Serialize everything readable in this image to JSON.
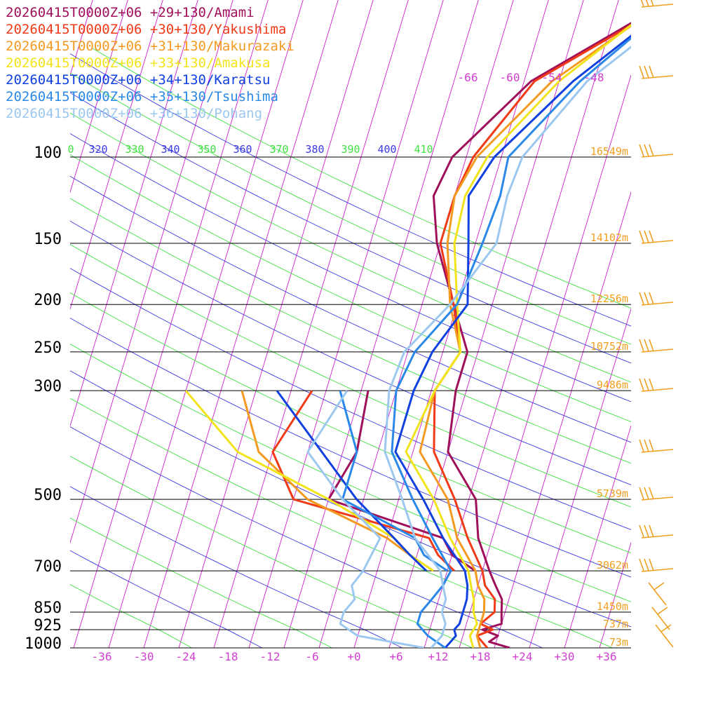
{
  "chart_data": {
    "type": "line",
    "title": "",
    "xlabel": "",
    "ylabel": "",
    "x_ticks": [
      "-36",
      "-30",
      "-24",
      "-18",
      "-12",
      "-6",
      "+0",
      "+6",
      "+12",
      "+18",
      "+24",
      "+30",
      "+36"
    ],
    "y_ticks": [
      {
        "p": 100,
        "label": "100",
        "height": "16549m"
      },
      {
        "p": 150,
        "label": "150",
        "height": "14102m"
      },
      {
        "p": 200,
        "label": "200",
        "height": "12256m"
      },
      {
        "p": 250,
        "label": "250",
        "height": "10752m"
      },
      {
        "p": 300,
        "label": "300",
        "height": "9486m"
      },
      {
        "p": 500,
        "label": "500",
        "height": "5739m"
      },
      {
        "p": 700,
        "label": "700",
        "height": "3062m"
      },
      {
        "p": 850,
        "label": "850",
        "height": "1450m"
      },
      {
        "p": 925,
        "label": "925",
        "height": "737m"
      },
      {
        "p": 1000,
        "label": "1000",
        "height": "73m"
      }
    ],
    "isotherm_labels": [
      "-66",
      "-60",
      "-54",
      "-48"
    ],
    "theta_labels": [
      "0",
      "320",
      "330",
      "340",
      "350",
      "360",
      "370",
      "380",
      "390",
      "400",
      "410"
    ],
    "series": [
      {
        "name": "20260415T0000Z+06 +29+130/Amami",
        "color": "#a0105a",
        "temp": [
          [
            1000,
            22.2
          ],
          [
            975,
            19
          ],
          [
            950,
            20
          ],
          [
            925,
            17.5
          ],
          [
            900,
            20
          ],
          [
            850,
            19.5
          ],
          [
            800,
            19
          ],
          [
            750,
            17.5
          ],
          [
            700,
            16
          ],
          [
            600,
            13
          ],
          [
            500,
            11
          ],
          [
            400,
            5
          ],
          [
            300,
            3.5
          ],
          [
            250,
            3.5
          ],
          [
            200,
            -0.5
          ],
          [
            150,
            -5.5
          ],
          [
            120,
            -8
          ],
          [
            100,
            -7
          ],
          [
            70,
            1
          ],
          [
            50,
            15.5
          ]
        ],
        "dew": [
          [
            300,
            -9
          ],
          [
            400,
            -8
          ],
          [
            500,
            -10
          ],
          [
            600,
            8
          ],
          [
            650,
            10
          ],
          [
            700,
            14
          ]
        ]
      },
      {
        "name": "20260415T0000Z+06 +30+130/Yakushima",
        "color": "#f03a18",
        "temp": [
          [
            1000,
            19
          ],
          [
            950,
            17
          ],
          [
            925,
            19
          ],
          [
            900,
            17
          ],
          [
            850,
            18.5
          ],
          [
            800,
            18
          ],
          [
            750,
            16
          ],
          [
            700,
            15
          ],
          [
            600,
            11.5
          ],
          [
            500,
            8
          ],
          [
            400,
            3
          ],
          [
            300,
            0.5
          ],
          [
            250,
            2.5
          ],
          [
            200,
            -0.5
          ],
          [
            150,
            -5
          ],
          [
            120,
            -5
          ],
          [
            100,
            -4
          ],
          [
            70,
            1.5
          ],
          [
            50,
            16
          ]
        ],
        "dew": [
          [
            300,
            -17
          ],
          [
            400,
            -20
          ],
          [
            500,
            -15
          ],
          [
            600,
            6
          ],
          [
            650,
            8
          ],
          [
            700,
            11
          ]
        ]
      },
      {
        "name": "20260415T0000Z+06 +31+130/Makurazaki",
        "color": "#f49a20",
        "temp": [
          [
            1000,
            18
          ],
          [
            950,
            17
          ],
          [
            900,
            17
          ],
          [
            850,
            17
          ],
          [
            800,
            16.5
          ],
          [
            750,
            15
          ],
          [
            700,
            14
          ],
          [
            600,
            10
          ],
          [
            500,
            7
          ],
          [
            400,
            1
          ],
          [
            300,
            0.5
          ],
          [
            250,
            2.5
          ],
          [
            200,
            -1
          ],
          [
            150,
            -4
          ],
          [
            120,
            -5
          ],
          [
            100,
            -3.5
          ],
          [
            70,
            4
          ],
          [
            50,
            15.5
          ]
        ],
        "dew": [
          [
            300,
            -27
          ],
          [
            400,
            -22
          ],
          [
            500,
            -13
          ],
          [
            600,
            0
          ],
          [
            650,
            4
          ],
          [
            700,
            8
          ]
        ]
      },
      {
        "name": "20260415T0000Z+06 +33+130/Amakusa",
        "color": "#f2e41c",
        "temp": [
          [
            1000,
            17
          ],
          [
            950,
            16
          ],
          [
            900,
            16.5
          ],
          [
            850,
            15.5
          ],
          [
            800,
            15
          ],
          [
            750,
            14
          ],
          [
            700,
            13
          ],
          [
            600,
            9
          ],
          [
            500,
            5
          ],
          [
            400,
            -1
          ],
          [
            300,
            0.5
          ],
          [
            250,
            2.5
          ],
          [
            200,
            0
          ],
          [
            150,
            -3
          ],
          [
            120,
            -3.5
          ],
          [
            100,
            -2
          ],
          [
            70,
            5
          ],
          [
            50,
            15
          ]
        ],
        "dew": [
          [
            300,
            -35
          ],
          [
            400,
            -25
          ],
          [
            500,
            -10
          ],
          [
            600,
            1
          ],
          [
            650,
            4
          ],
          [
            700,
            8
          ]
        ]
      },
      {
        "name": "20260415T0000Z+06 +34+130/Karatsu",
        "color": "#1040e0",
        "temp": [
          [
            1000,
            13
          ],
          [
            950,
            14
          ],
          [
            925,
            13.5
          ],
          [
            900,
            14
          ],
          [
            850,
            14
          ],
          [
            800,
            14
          ],
          [
            750,
            13.5
          ],
          [
            700,
            12.5
          ],
          [
            600,
            8
          ],
          [
            500,
            3.5
          ],
          [
            400,
            -2.5
          ],
          [
            300,
            -2.5
          ],
          [
            250,
            -1.5
          ],
          [
            200,
            1.5
          ],
          [
            150,
            -1
          ],
          [
            120,
            -3
          ],
          [
            100,
            -1
          ],
          [
            70,
            7
          ],
          [
            50,
            17
          ]
        ],
        "dew": [
          [
            300,
            -22
          ],
          [
            400,
            -13
          ],
          [
            500,
            -6
          ],
          [
            600,
            1
          ],
          [
            650,
            4
          ],
          [
            700,
            7
          ]
        ]
      },
      {
        "name": "20260415T0000Z+06 +35+130/Tsushima",
        "color": "#2a88e8",
        "temp": [
          [
            1000,
            13
          ],
          [
            950,
            10
          ],
          [
            900,
            8
          ],
          [
            850,
            8
          ],
          [
            800,
            9
          ],
          [
            750,
            10
          ],
          [
            700,
            10.5
          ],
          [
            600,
            6.5
          ],
          [
            500,
            2
          ],
          [
            400,
            -3
          ],
          [
            300,
            -5
          ],
          [
            250,
            -4
          ],
          [
            200,
            0
          ],
          [
            150,
            1
          ],
          [
            120,
            1.5
          ],
          [
            100,
            1
          ],
          [
            70,
            8
          ],
          [
            50,
            17
          ]
        ],
        "dew": [
          [
            300,
            -13
          ],
          [
            400,
            -8
          ],
          [
            500,
            -8
          ],
          [
            600,
            4
          ],
          [
            650,
            6
          ],
          [
            700,
            10
          ]
        ]
      },
      {
        "name": "20260415T0000Z+06 +36+130/Pohang",
        "color": "#9cc8f0",
        "temp": [
          [
            1000,
            11
          ],
          [
            950,
            12
          ],
          [
            900,
            12
          ],
          [
            850,
            11
          ],
          [
            800,
            11
          ],
          [
            750,
            10
          ],
          [
            700,
            9
          ],
          [
            600,
            4
          ],
          [
            500,
            0.5
          ],
          [
            400,
            -4
          ],
          [
            300,
            -6
          ],
          [
            250,
            -5.5
          ],
          [
            200,
            -1
          ],
          [
            150,
            3
          ],
          [
            120,
            2.5
          ],
          [
            100,
            3
          ],
          [
            70,
            9
          ],
          [
            50,
            19
          ]
        ],
        "dew": [
          [
            1000,
            10
          ],
          [
            950,
            0
          ],
          [
            900,
            -3
          ],
          [
            850,
            -3
          ],
          [
            800,
            -2
          ],
          [
            750,
            -3
          ],
          [
            700,
            -2
          ],
          [
            600,
            -1
          ],
          [
            500,
            -8
          ],
          [
            400,
            -15
          ],
          [
            300,
            -12
          ]
        ]
      }
    ]
  }
}
